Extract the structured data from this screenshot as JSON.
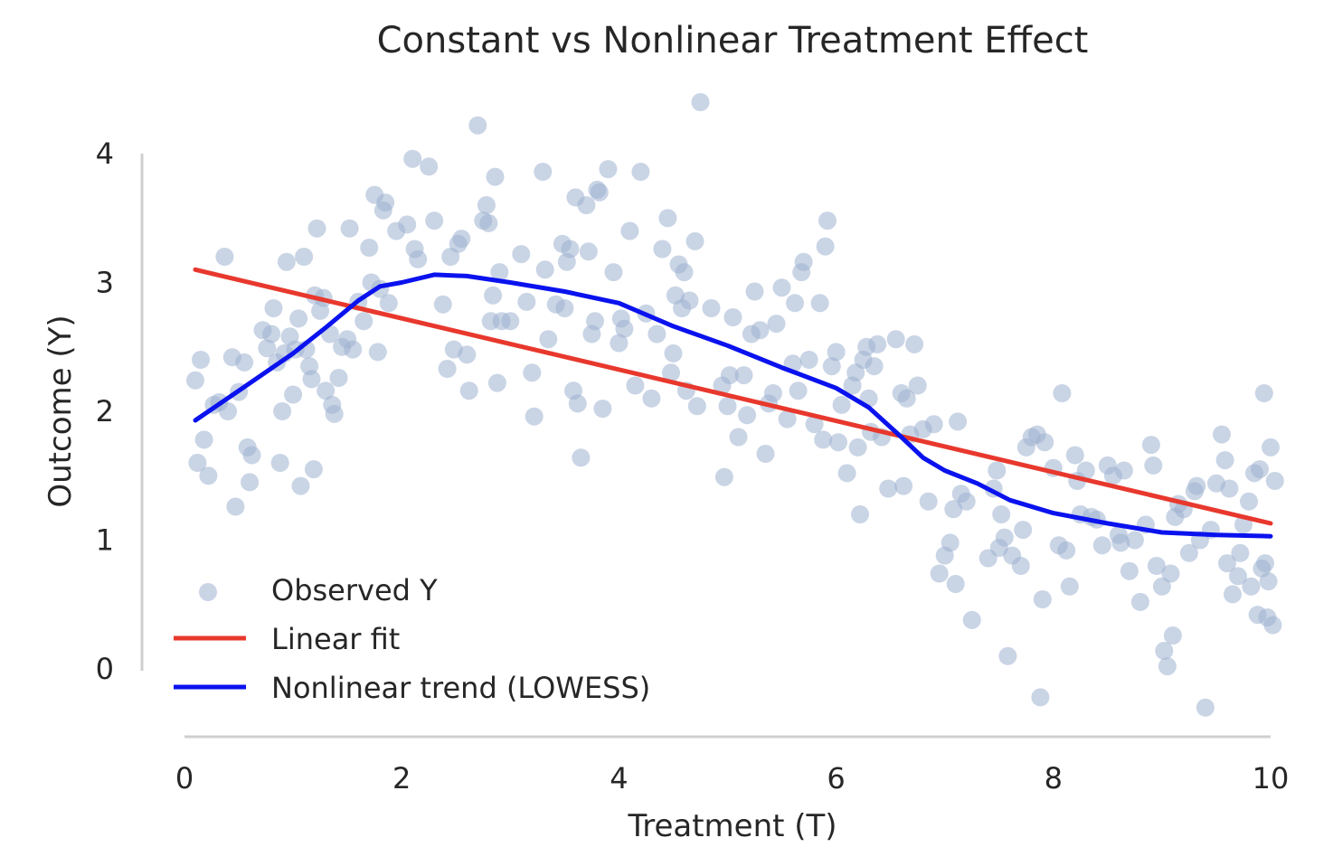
{
  "chart_data": {
    "type": "scatter",
    "title": "Constant vs Nonlinear Treatment Effect",
    "xlabel": "Treatment (T)",
    "ylabel": "Outcome (Y)",
    "xlim": [
      0,
      10
    ],
    "ylim": [
      -0.5,
      4.4
    ],
    "xticks": [
      0,
      2,
      4,
      6,
      8,
      10
    ],
    "yticks": [
      0,
      1,
      2,
      3,
      4
    ],
    "grid": false,
    "legend": "lower-left",
    "colors": {
      "scatter": "#9db0cf",
      "linear": "#e8382d",
      "lowess": "#0a12ee"
    },
    "series": [
      {
        "name": "Observed Y",
        "kind": "scatter",
        "points": [
          [
            0.1,
            2.24
          ],
          [
            0.12,
            1.6
          ],
          [
            0.15,
            2.4
          ],
          [
            0.18,
            1.78
          ],
          [
            0.22,
            1.5
          ],
          [
            0.27,
            2.05
          ],
          [
            0.32,
            2.07
          ],
          [
            0.37,
            3.2
          ],
          [
            0.4,
            2.0
          ],
          [
            0.44,
            2.42
          ],
          [
            0.47,
            1.26
          ],
          [
            0.5,
            2.15
          ],
          [
            0.55,
            2.38
          ],
          [
            0.58,
            1.72
          ],
          [
            0.6,
            1.45
          ],
          [
            0.62,
            1.66
          ],
          [
            0.72,
            2.63
          ],
          [
            0.76,
            2.49
          ],
          [
            0.8,
            2.6
          ],
          [
            0.82,
            2.8
          ],
          [
            0.85,
            2.38
          ],
          [
            0.88,
            1.6
          ],
          [
            0.9,
            2.0
          ],
          [
            0.92,
            2.45
          ],
          [
            0.94,
            3.16
          ],
          [
            0.97,
            2.58
          ],
          [
            1.0,
            2.13
          ],
          [
            1.02,
            2.48
          ],
          [
            1.05,
            2.72
          ],
          [
            1.07,
            1.42
          ],
          [
            1.1,
            3.2
          ],
          [
            1.12,
            2.48
          ],
          [
            1.15,
            2.35
          ],
          [
            1.17,
            2.25
          ],
          [
            1.19,
            1.55
          ],
          [
            1.2,
            2.9
          ],
          [
            1.22,
            3.42
          ],
          [
            1.25,
            2.78
          ],
          [
            1.28,
            2.88
          ],
          [
            1.3,
            2.16
          ],
          [
            1.34,
            2.6
          ],
          [
            1.36,
            2.05
          ],
          [
            1.38,
            1.98
          ],
          [
            1.42,
            2.26
          ],
          [
            1.45,
            2.5
          ],
          [
            1.5,
            2.56
          ],
          [
            1.52,
            3.42
          ],
          [
            1.55,
            2.48
          ],
          [
            1.6,
            2.85
          ],
          [
            1.65,
            2.7
          ],
          [
            1.7,
            3.27
          ],
          [
            1.72,
            3.0
          ],
          [
            1.75,
            3.68
          ],
          [
            1.78,
            2.46
          ],
          [
            1.8,
            2.95
          ],
          [
            1.83,
            3.56
          ],
          [
            1.85,
            3.62
          ],
          [
            1.88,
            2.84
          ],
          [
            1.95,
            3.4
          ],
          [
            2.05,
            3.45
          ],
          [
            2.1,
            3.96
          ],
          [
            2.12,
            3.26
          ],
          [
            2.15,
            3.18
          ],
          [
            2.25,
            3.9
          ],
          [
            2.3,
            3.48
          ],
          [
            2.38,
            2.83
          ],
          [
            2.42,
            2.33
          ],
          [
            2.45,
            3.2
          ],
          [
            2.48,
            2.48
          ],
          [
            2.52,
            3.3
          ],
          [
            2.55,
            3.34
          ],
          [
            2.6,
            2.44
          ],
          [
            2.62,
            2.16
          ],
          [
            2.7,
            4.22
          ],
          [
            2.75,
            3.48
          ],
          [
            2.78,
            3.6
          ],
          [
            2.8,
            3.46
          ],
          [
            2.82,
            2.7
          ],
          [
            2.84,
            2.9
          ],
          [
            2.86,
            3.82
          ],
          [
            2.88,
            2.22
          ],
          [
            2.9,
            3.08
          ],
          [
            2.92,
            2.7
          ],
          [
            3.0,
            2.7
          ],
          [
            3.1,
            3.22
          ],
          [
            3.15,
            2.85
          ],
          [
            3.2,
            2.3
          ],
          [
            3.22,
            1.96
          ],
          [
            3.3,
            3.86
          ],
          [
            3.32,
            3.1
          ],
          [
            3.35,
            2.56
          ],
          [
            3.42,
            2.83
          ],
          [
            3.48,
            3.3
          ],
          [
            3.5,
            2.8
          ],
          [
            3.52,
            3.16
          ],
          [
            3.55,
            3.26
          ],
          [
            3.58,
            2.16
          ],
          [
            3.6,
            3.66
          ],
          [
            3.62,
            2.06
          ],
          [
            3.65,
            1.64
          ],
          [
            3.7,
            3.6
          ],
          [
            3.72,
            3.24
          ],
          [
            3.75,
            2.6
          ],
          [
            3.78,
            2.7
          ],
          [
            3.8,
            3.72
          ],
          [
            3.82,
            3.7
          ],
          [
            3.85,
            2.02
          ],
          [
            3.9,
            3.88
          ],
          [
            3.95,
            3.08
          ],
          [
            4.0,
            2.53
          ],
          [
            4.02,
            2.72
          ],
          [
            4.05,
            2.64
          ],
          [
            4.1,
            3.4
          ],
          [
            4.15,
            2.2
          ],
          [
            4.2,
            3.86
          ],
          [
            4.25,
            2.76
          ],
          [
            4.3,
            2.1
          ],
          [
            4.35,
            2.6
          ],
          [
            4.4,
            3.26
          ],
          [
            4.45,
            3.5
          ],
          [
            4.48,
            2.3
          ],
          [
            4.5,
            2.45
          ],
          [
            4.52,
            2.9
          ],
          [
            4.55,
            3.14
          ],
          [
            4.58,
            2.8
          ],
          [
            4.6,
            3.08
          ],
          [
            4.62,
            2.16
          ],
          [
            4.65,
            2.86
          ],
          [
            4.7,
            3.32
          ],
          [
            4.72,
            2.04
          ],
          [
            4.75,
            4.4
          ],
          [
            4.85,
            2.8
          ],
          [
            4.95,
            2.2
          ],
          [
            4.97,
            1.49
          ],
          [
            5.0,
            2.04
          ],
          [
            5.02,
            2.28
          ],
          [
            5.05,
            2.73
          ],
          [
            5.1,
            1.8
          ],
          [
            5.15,
            2.28
          ],
          [
            5.18,
            1.97
          ],
          [
            5.22,
            2.6
          ],
          [
            5.25,
            2.93
          ],
          [
            5.3,
            2.63
          ],
          [
            5.35,
            1.67
          ],
          [
            5.38,
            2.06
          ],
          [
            5.42,
            2.14
          ],
          [
            5.45,
            2.68
          ],
          [
            5.5,
            2.96
          ],
          [
            5.55,
            1.94
          ],
          [
            5.6,
            2.37
          ],
          [
            5.62,
            2.84
          ],
          [
            5.65,
            2.16
          ],
          [
            5.68,
            3.08
          ],
          [
            5.7,
            3.16
          ],
          [
            5.75,
            2.4
          ],
          [
            5.8,
            1.9
          ],
          [
            5.85,
            2.84
          ],
          [
            5.88,
            1.78
          ],
          [
            5.9,
            3.28
          ],
          [
            5.92,
            3.48
          ],
          [
            5.96,
            2.35
          ],
          [
            6.0,
            2.46
          ],
          [
            6.02,
            1.76
          ],
          [
            6.05,
            2.05
          ],
          [
            6.1,
            1.52
          ],
          [
            6.15,
            2.2
          ],
          [
            6.18,
            2.3
          ],
          [
            6.2,
            1.72
          ],
          [
            6.22,
            1.2
          ],
          [
            6.25,
            2.4
          ],
          [
            6.28,
            2.5
          ],
          [
            6.3,
            2.1
          ],
          [
            6.32,
            1.84
          ],
          [
            6.35,
            2.35
          ],
          [
            6.38,
            2.52
          ],
          [
            6.42,
            1.8
          ],
          [
            6.48,
            1.4
          ],
          [
            6.55,
            2.56
          ],
          [
            6.6,
            2.14
          ],
          [
            6.62,
            1.42
          ],
          [
            6.65,
            2.1
          ],
          [
            6.68,
            1.82
          ],
          [
            6.72,
            2.52
          ],
          [
            6.75,
            2.2
          ],
          [
            6.8,
            1.86
          ],
          [
            6.85,
            1.3
          ],
          [
            6.9,
            1.9
          ],
          [
            6.95,
            0.74
          ],
          [
            7.0,
            0.88
          ],
          [
            7.05,
            0.98
          ],
          [
            7.08,
            1.24
          ],
          [
            7.1,
            0.66
          ],
          [
            7.12,
            1.92
          ],
          [
            7.15,
            1.36
          ],
          [
            7.2,
            1.3
          ],
          [
            7.25,
            0.38
          ],
          [
            7.4,
            0.86
          ],
          [
            7.45,
            1.4
          ],
          [
            7.48,
            1.54
          ],
          [
            7.5,
            0.94
          ],
          [
            7.52,
            1.2
          ],
          [
            7.55,
            1.02
          ],
          [
            7.58,
            0.1
          ],
          [
            7.62,
            0.88
          ],
          [
            7.7,
            0.8
          ],
          [
            7.72,
            1.08
          ],
          [
            7.75,
            1.72
          ],
          [
            7.8,
            1.8
          ],
          [
            7.85,
            1.82
          ],
          [
            7.88,
            -0.22
          ],
          [
            7.9,
            0.54
          ],
          [
            7.92,
            1.76
          ],
          [
            8.0,
            1.56
          ],
          [
            8.05,
            0.96
          ],
          [
            8.08,
            2.14
          ],
          [
            8.12,
            0.92
          ],
          [
            8.15,
            0.64
          ],
          [
            8.2,
            1.66
          ],
          [
            8.22,
            1.46
          ],
          [
            8.25,
            1.2
          ],
          [
            8.3,
            1.54
          ],
          [
            8.35,
            1.18
          ],
          [
            8.4,
            1.16
          ],
          [
            8.45,
            0.96
          ],
          [
            8.5,
            1.58
          ],
          [
            8.55,
            1.5
          ],
          [
            8.6,
            1.04
          ],
          [
            8.62,
            0.98
          ],
          [
            8.65,
            1.54
          ],
          [
            8.7,
            0.76
          ],
          [
            8.75,
            1.0
          ],
          [
            8.8,
            0.52
          ],
          [
            8.85,
            1.12
          ],
          [
            8.9,
            1.74
          ],
          [
            8.92,
            1.58
          ],
          [
            8.95,
            0.8
          ],
          [
            9.0,
            0.64
          ],
          [
            9.02,
            0.14
          ],
          [
            9.05,
            0.02
          ],
          [
            9.08,
            0.74
          ],
          [
            9.1,
            0.26
          ],
          [
            9.12,
            1.18
          ],
          [
            9.15,
            1.28
          ],
          [
            9.2,
            1.24
          ],
          [
            9.25,
            0.9
          ],
          [
            9.3,
            1.38
          ],
          [
            9.32,
            1.42
          ],
          [
            9.35,
            1.0
          ],
          [
            9.4,
            -0.3
          ],
          [
            9.45,
            1.08
          ],
          [
            9.5,
            1.44
          ],
          [
            9.55,
            1.82
          ],
          [
            9.58,
            1.62
          ],
          [
            9.6,
            0.82
          ],
          [
            9.62,
            1.4
          ],
          [
            9.65,
            0.58
          ],
          [
            9.7,
            0.72
          ],
          [
            9.72,
            0.9
          ],
          [
            9.75,
            1.12
          ],
          [
            9.8,
            1.3
          ],
          [
            9.82,
            0.64
          ],
          [
            9.85,
            1.52
          ],
          [
            9.88,
            0.42
          ],
          [
            9.9,
            1.55
          ],
          [
            9.92,
            0.78
          ],
          [
            9.94,
            2.14
          ],
          [
            9.95,
            0.82
          ],
          [
            9.97,
            0.4
          ],
          [
            9.98,
            0.68
          ],
          [
            10.0,
            1.72
          ],
          [
            10.02,
            0.34
          ],
          [
            10.04,
            1.46
          ]
        ]
      },
      {
        "name": "Linear fit",
        "kind": "line",
        "points": [
          [
            0.1,
            3.1
          ],
          [
            10.0,
            1.13
          ]
        ]
      },
      {
        "name": "Nonlinear trend (LOWESS)",
        "kind": "line",
        "points": [
          [
            0.1,
            1.93
          ],
          [
            0.5,
            2.16
          ],
          [
            1.0,
            2.45
          ],
          [
            1.3,
            2.65
          ],
          [
            1.6,
            2.86
          ],
          [
            1.8,
            2.97
          ],
          [
            2.0,
            3.0
          ],
          [
            2.3,
            3.06
          ],
          [
            2.6,
            3.05
          ],
          [
            3.0,
            3.0
          ],
          [
            3.5,
            2.93
          ],
          [
            4.0,
            2.84
          ],
          [
            4.5,
            2.66
          ],
          [
            5.0,
            2.51
          ],
          [
            5.5,
            2.34
          ],
          [
            6.0,
            2.18
          ],
          [
            6.3,
            2.03
          ],
          [
            6.6,
            1.8
          ],
          [
            6.8,
            1.64
          ],
          [
            7.0,
            1.54
          ],
          [
            7.3,
            1.44
          ],
          [
            7.6,
            1.31
          ],
          [
            8.0,
            1.21
          ],
          [
            8.5,
            1.13
          ],
          [
            9.0,
            1.06
          ],
          [
            9.5,
            1.04
          ],
          [
            10.0,
            1.03
          ]
        ]
      }
    ]
  }
}
